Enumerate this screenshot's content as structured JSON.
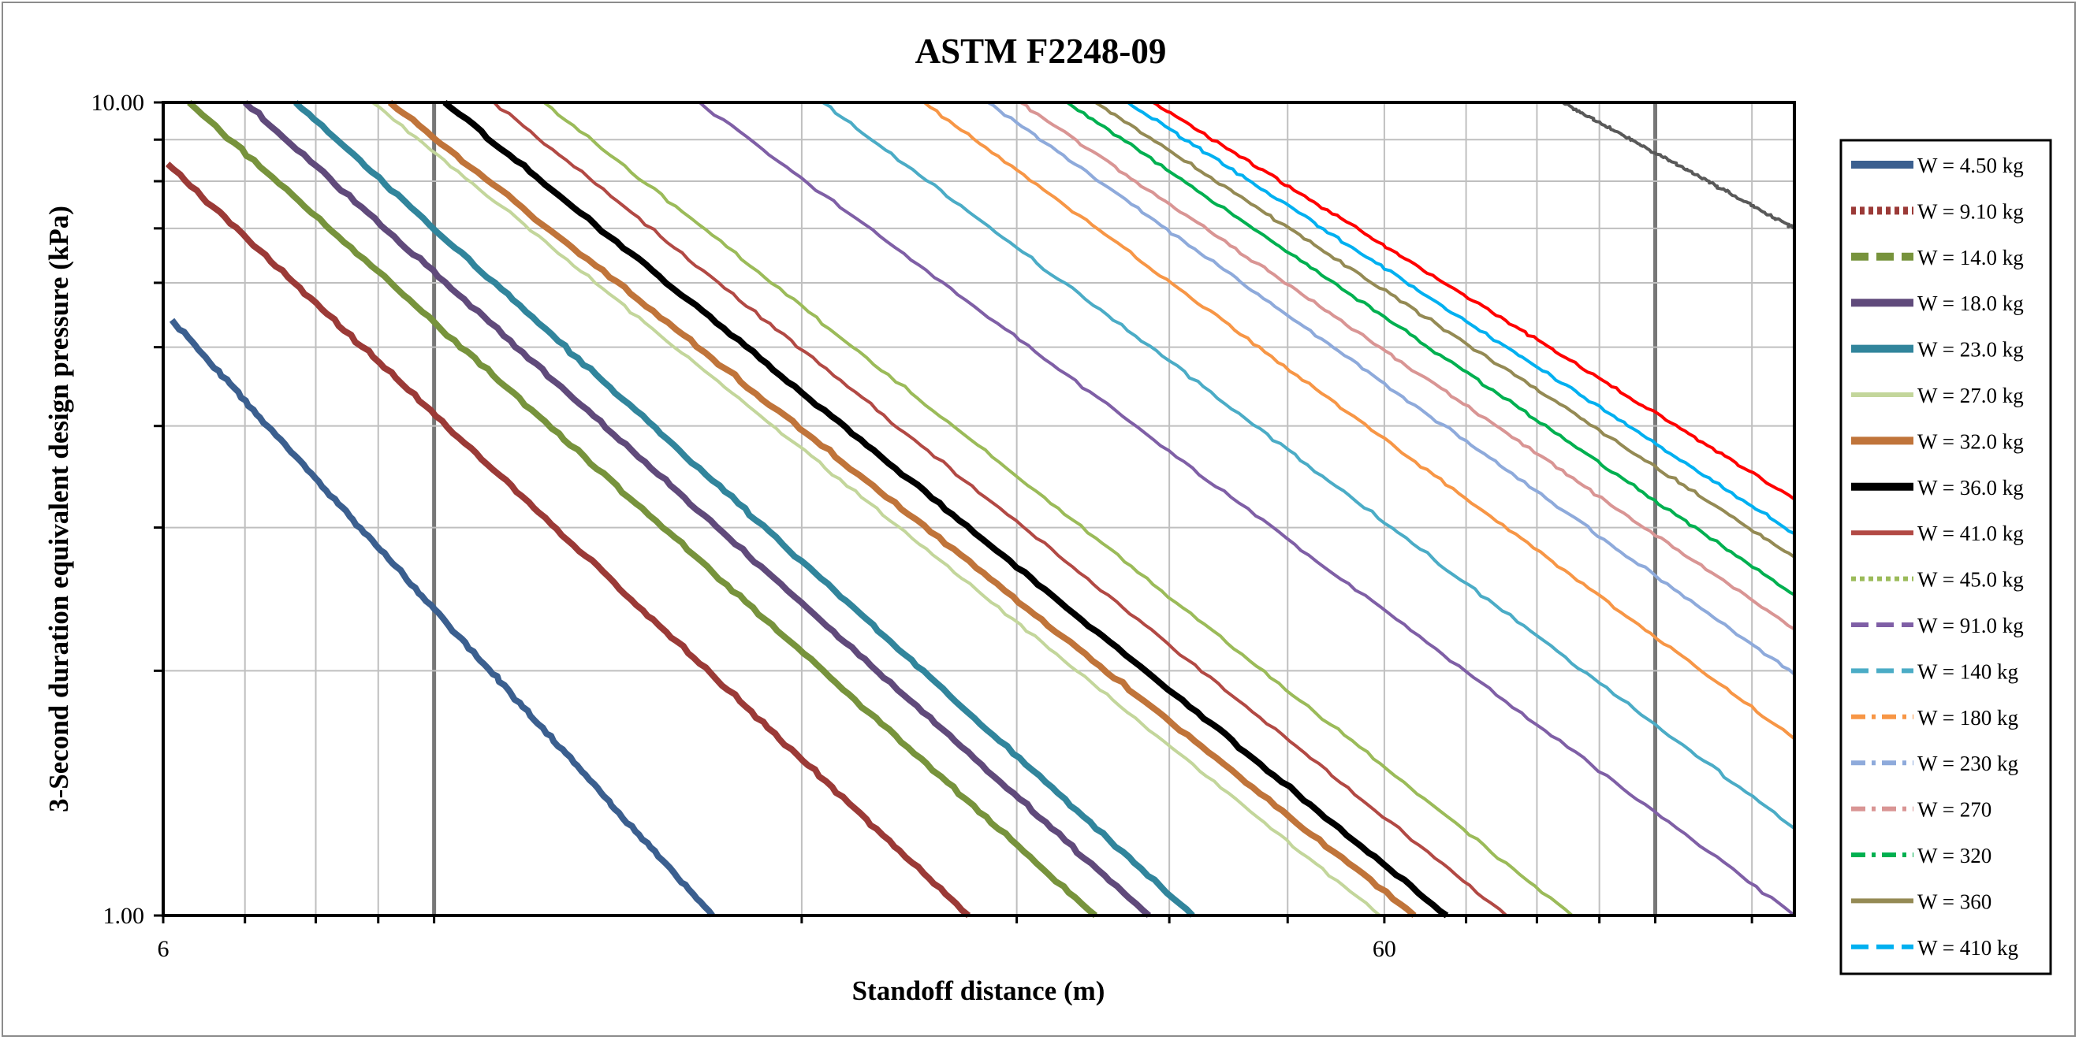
{
  "chart_data": {
    "type": "line",
    "title": "ASTM F2248-09",
    "xlabel": "Standoff distance (m)",
    "ylabel": "3-Second duration equivalent design pressure (kPa)",
    "x_scale": "log",
    "y_scale": "log",
    "xlim": [
      6,
      130
    ],
    "ylim": [
      1.0,
      10.0
    ],
    "x_tick_labels": [
      "6",
      "60"
    ],
    "y_tick_labels": [
      "1.00",
      "10.00"
    ],
    "grid": true,
    "legend_position": "right",
    "series": [
      {
        "name": "W = 4.50 kg",
        "color": "#3b5f8f",
        "dash": "solid",
        "width": 8,
        "x": [
          6.1,
          16.9
        ],
        "y": [
          5.4,
          1.0
        ]
      },
      {
        "name": "W = 9.10 kg",
        "color": "#9b3a37",
        "dash": "dot",
        "width": 8,
        "x": [
          6.05,
          27.4
        ],
        "y": [
          8.4,
          1.0
        ]
      },
      {
        "name": "W = 14.0 kg",
        "color": "#77933c",
        "dash": "dash",
        "width": 8,
        "x": [
          6.3,
          34.8
        ],
        "y": [
          10.0,
          1.0
        ]
      },
      {
        "name": "W = 18.0 kg",
        "color": "#604a7b",
        "dash": "solid",
        "width": 8,
        "x": [
          7.0,
          38.5
        ],
        "y": [
          10.0,
          1.0
        ]
      },
      {
        "name": "W = 23.0 kg",
        "color": "#31859c",
        "dash": "solid",
        "width": 8,
        "x": [
          7.7,
          41.8
        ],
        "y": [
          10.0,
          1.0
        ]
      },
      {
        "name": "W = 27.0 kg",
        "color": "#c3d69b",
        "dash": "solid",
        "width": 4,
        "x": [
          8.9,
          59.5
        ],
        "y": [
          10.0,
          1.0
        ]
      },
      {
        "name": "W = 32.0 kg",
        "color": "#c0743a",
        "dash": "solid",
        "width": 8,
        "x": [
          9.2,
          63.5
        ],
        "y": [
          10.0,
          1.0
        ]
      },
      {
        "name": "W = 36.0 kg",
        "color": "#000000",
        "dash": "solid",
        "width": 8,
        "x": [
          10.2,
          67.5
        ],
        "y": [
          10.0,
          1.0
        ]
      },
      {
        "name": "W = 41.0 kg",
        "color": "#b24944",
        "dash": "solid",
        "width": 4,
        "x": [
          11.2,
          75.5
        ],
        "y": [
          10.0,
          1.0
        ]
      },
      {
        "name": "W = 45.0 kg",
        "color": "#9bbb59",
        "dash": "dot",
        "width": 4,
        "x": [
          12.3,
          85.5
        ],
        "y": [
          10.0,
          1.0
        ]
      },
      {
        "name": "W = 91.0 kg",
        "color": "#7f5fa6",
        "dash": "dash",
        "width": 4,
        "x": [
          16.5,
          130.0
        ],
        "y": [
          10.0,
          1.0
        ]
      },
      {
        "name": "W = 140 kg",
        "color": "#4bacc6",
        "dash": "dash",
        "width": 4,
        "x": [
          20.8,
          130.0
        ],
        "y": [
          10.0,
          1.28
        ]
      },
      {
        "name": "W = 180 kg",
        "color": "#f79646",
        "dash": "dashdot",
        "width": 4,
        "x": [
          25.2,
          130.0
        ],
        "y": [
          10.0,
          1.65
        ]
      },
      {
        "name": "W = 230 kg",
        "color": "#8eaadb",
        "dash": "dashdot",
        "width": 4,
        "x": [
          28.4,
          130.0
        ],
        "y": [
          10.0,
          1.98
        ]
      },
      {
        "name": "W = 270",
        "color": "#d99594",
        "dash": "dashdot",
        "width": 4,
        "x": [
          30.2,
          130.0
        ],
        "y": [
          10.0,
          2.25
        ]
      },
      {
        "name": "W = 320",
        "color": "#00b050",
        "dash": "dashdot",
        "width": 4,
        "x": [
          33.0,
          130.0
        ],
        "y": [
          10.0,
          2.48
        ]
      },
      {
        "name": "W = 360",
        "color": "#948a54",
        "dash": "solid",
        "width": 4,
        "x": [
          34.8,
          130.0
        ],
        "y": [
          10.0,
          2.76
        ]
      },
      {
        "name": "W = 410 kg",
        "color": "#00b0f0",
        "dash": "dash",
        "width": 4,
        "x": [
          37.0,
          130.0
        ],
        "y": [
          10.0,
          2.95
        ]
      },
      {
        "name": "",
        "color": "#ff0000",
        "dash": "solid",
        "width": 4,
        "x": [
          38.8,
          130.0
        ],
        "y": [
          10.0,
          3.25
        ]
      },
      {
        "name": "",
        "color": "#595959",
        "dash": "solid",
        "width": 4,
        "x": [
          84.0,
          130.0
        ],
        "y": [
          10.0,
          7.0
        ]
      }
    ]
  }
}
